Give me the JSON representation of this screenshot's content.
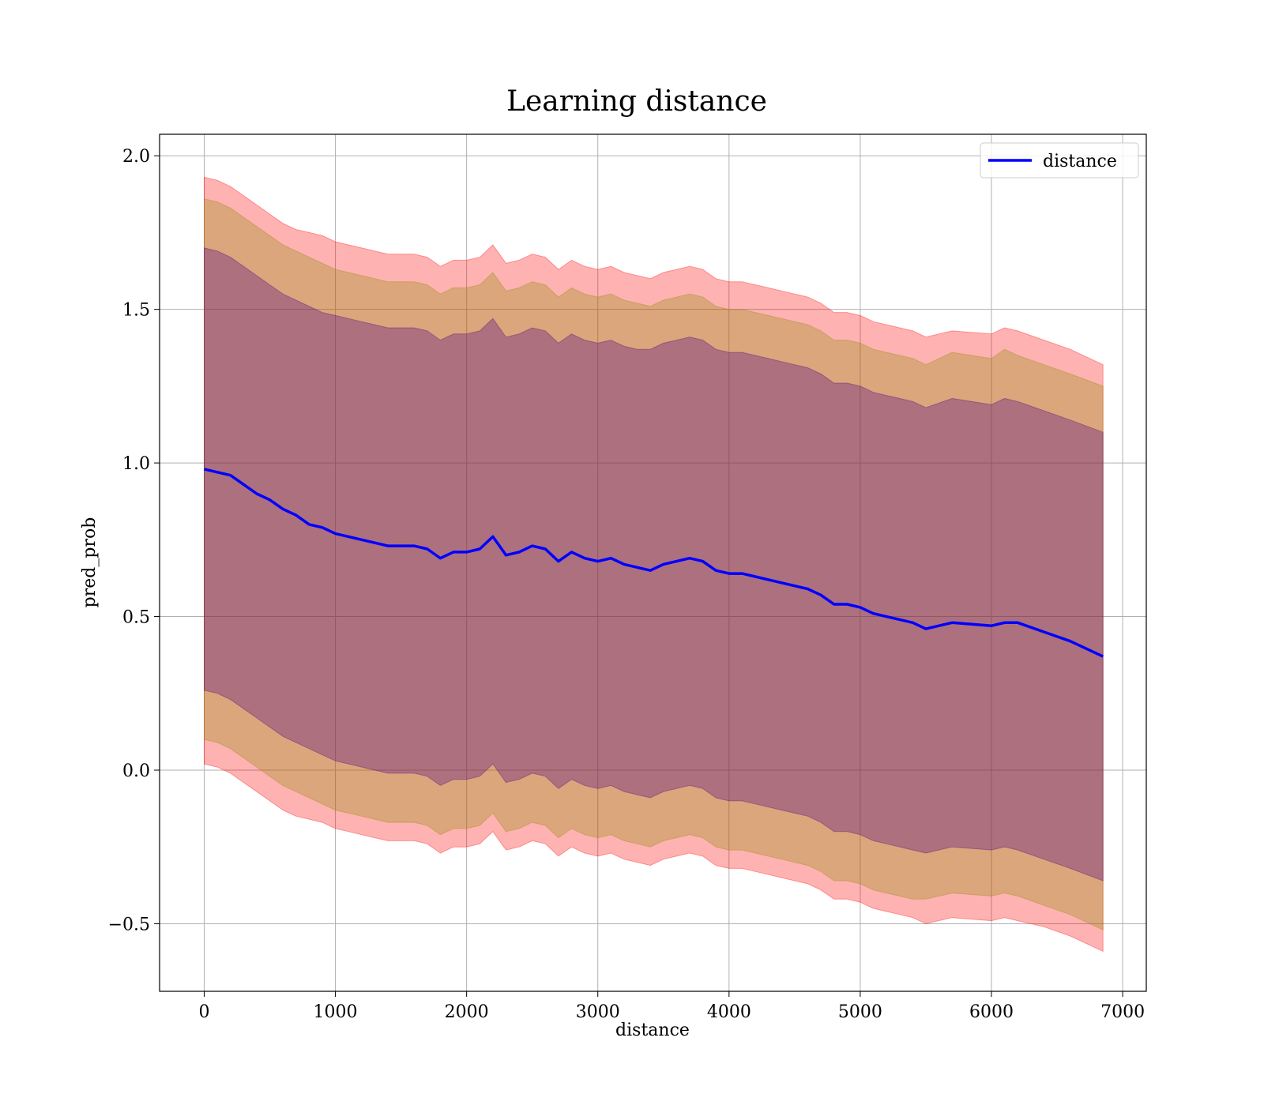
{
  "chart_data": {
    "type": "line",
    "title": "Learning distance",
    "xlabel": "distance",
    "ylabel": "pred_prob",
    "xlim": [
      -340,
      7180
    ],
    "ylim": [
      -0.72,
      2.07
    ],
    "xticks": [
      0,
      1000,
      2000,
      3000,
      4000,
      5000,
      6000,
      7000
    ],
    "yticks": [
      -0.5,
      0.0,
      0.5,
      1.0,
      1.5,
      2.0
    ],
    "xtick_labels": [
      "0",
      "1000",
      "2000",
      "3000",
      "4000",
      "5000",
      "6000",
      "7000"
    ],
    "ytick_labels": [
      "−0.5",
      "0.0",
      "0.5",
      "1.0",
      "1.5",
      "2.0"
    ],
    "grid": true,
    "legend": {
      "position": "top-right",
      "entries": [
        "distance"
      ]
    },
    "colors": {
      "line": "#0000ff",
      "band_outer": "#ff0000",
      "band_middle": "#8b8b00",
      "band_inner": "#4b0082",
      "grid": "#b0b0b0"
    },
    "series": [
      {
        "name": "distance",
        "x": [
          0,
          100,
          200,
          300,
          400,
          500,
          600,
          700,
          800,
          900,
          1000,
          1100,
          1200,
          1300,
          1400,
          1500,
          1600,
          1700,
          1800,
          1900,
          2000,
          2100,
          2200,
          2300,
          2400,
          2500,
          2600,
          2700,
          2800,
          2900,
          3000,
          3100,
          3200,
          3300,
          3400,
          3500,
          3600,
          3700,
          3800,
          3900,
          4000,
          4100,
          4200,
          4300,
          4400,
          4500,
          4600,
          4700,
          4800,
          4900,
          5000,
          5100,
          5200,
          5300,
          5400,
          5500,
          5700,
          6000,
          6100,
          6200,
          6400,
          6600,
          6850
        ],
        "values": [
          0.98,
          0.97,
          0.96,
          0.93,
          0.9,
          0.88,
          0.85,
          0.83,
          0.8,
          0.79,
          0.77,
          0.76,
          0.75,
          0.74,
          0.73,
          0.73,
          0.73,
          0.72,
          0.69,
          0.71,
          0.71,
          0.72,
          0.76,
          0.7,
          0.71,
          0.73,
          0.72,
          0.68,
          0.71,
          0.69,
          0.68,
          0.69,
          0.67,
          0.66,
          0.65,
          0.67,
          0.68,
          0.69,
          0.68,
          0.65,
          0.64,
          0.64,
          0.63,
          0.62,
          0.61,
          0.6,
          0.59,
          0.57,
          0.54,
          0.54,
          0.53,
          0.51,
          0.5,
          0.49,
          0.48,
          0.46,
          0.48,
          0.47,
          0.48,
          0.48,
          0.45,
          0.42,
          0.37
        ]
      }
    ],
    "bands": [
      {
        "role": "outer",
        "upper": [
          1.93,
          1.92,
          1.9,
          1.87,
          1.84,
          1.81,
          1.78,
          1.76,
          1.75,
          1.74,
          1.72,
          1.71,
          1.7,
          1.69,
          1.68,
          1.68,
          1.68,
          1.67,
          1.64,
          1.66,
          1.66,
          1.67,
          1.71,
          1.65,
          1.66,
          1.68,
          1.67,
          1.63,
          1.66,
          1.64,
          1.63,
          1.64,
          1.62,
          1.61,
          1.6,
          1.62,
          1.63,
          1.64,
          1.63,
          1.6,
          1.59,
          1.59,
          1.58,
          1.57,
          1.56,
          1.55,
          1.54,
          1.52,
          1.49,
          1.49,
          1.48,
          1.46,
          1.45,
          1.44,
          1.43,
          1.41,
          1.43,
          1.42,
          1.44,
          1.43,
          1.4,
          1.37,
          1.32
        ],
        "lower": [
          0.02,
          0.01,
          -0.01,
          -0.04,
          -0.07,
          -0.1,
          -0.13,
          -0.15,
          -0.16,
          -0.17,
          -0.19,
          -0.2,
          -0.21,
          -0.22,
          -0.23,
          -0.23,
          -0.23,
          -0.24,
          -0.27,
          -0.25,
          -0.25,
          -0.24,
          -0.2,
          -0.26,
          -0.25,
          -0.23,
          -0.24,
          -0.28,
          -0.25,
          -0.27,
          -0.28,
          -0.27,
          -0.29,
          -0.3,
          -0.31,
          -0.29,
          -0.28,
          -0.27,
          -0.28,
          -0.31,
          -0.32,
          -0.32,
          -0.33,
          -0.34,
          -0.35,
          -0.36,
          -0.37,
          -0.39,
          -0.42,
          -0.42,
          -0.43,
          -0.45,
          -0.46,
          -0.47,
          -0.48,
          -0.5,
          -0.48,
          -0.49,
          -0.48,
          -0.49,
          -0.51,
          -0.54,
          -0.59
        ]
      },
      {
        "role": "middle",
        "upper": [
          1.86,
          1.85,
          1.83,
          1.8,
          1.77,
          1.74,
          1.71,
          1.69,
          1.67,
          1.65,
          1.63,
          1.62,
          1.61,
          1.6,
          1.59,
          1.59,
          1.59,
          1.58,
          1.55,
          1.57,
          1.57,
          1.58,
          1.62,
          1.56,
          1.57,
          1.59,
          1.58,
          1.54,
          1.57,
          1.55,
          1.54,
          1.55,
          1.53,
          1.52,
          1.51,
          1.53,
          1.54,
          1.55,
          1.54,
          1.51,
          1.5,
          1.5,
          1.49,
          1.48,
          1.47,
          1.46,
          1.45,
          1.43,
          1.4,
          1.4,
          1.39,
          1.37,
          1.36,
          1.35,
          1.34,
          1.32,
          1.36,
          1.34,
          1.37,
          1.35,
          1.32,
          1.29,
          1.25
        ],
        "lower": [
          0.1,
          0.09,
          0.07,
          0.04,
          0.01,
          -0.02,
          -0.05,
          -0.07,
          -0.09,
          -0.11,
          -0.13,
          -0.14,
          -0.15,
          -0.16,
          -0.17,
          -0.17,
          -0.17,
          -0.18,
          -0.21,
          -0.19,
          -0.19,
          -0.18,
          -0.14,
          -0.2,
          -0.19,
          -0.17,
          -0.18,
          -0.22,
          -0.19,
          -0.21,
          -0.22,
          -0.21,
          -0.23,
          -0.24,
          -0.25,
          -0.23,
          -0.22,
          -0.21,
          -0.22,
          -0.25,
          -0.26,
          -0.26,
          -0.27,
          -0.28,
          -0.29,
          -0.3,
          -0.31,
          -0.33,
          -0.36,
          -0.36,
          -0.37,
          -0.39,
          -0.4,
          -0.41,
          -0.42,
          -0.42,
          -0.4,
          -0.41,
          -0.4,
          -0.41,
          -0.44,
          -0.47,
          -0.52
        ]
      },
      {
        "role": "inner",
        "upper": [
          1.7,
          1.69,
          1.67,
          1.64,
          1.61,
          1.58,
          1.55,
          1.53,
          1.51,
          1.49,
          1.48,
          1.47,
          1.46,
          1.45,
          1.44,
          1.44,
          1.44,
          1.43,
          1.4,
          1.42,
          1.42,
          1.43,
          1.47,
          1.41,
          1.42,
          1.44,
          1.43,
          1.39,
          1.42,
          1.4,
          1.39,
          1.4,
          1.38,
          1.37,
          1.37,
          1.39,
          1.4,
          1.41,
          1.4,
          1.37,
          1.36,
          1.36,
          1.35,
          1.34,
          1.33,
          1.32,
          1.31,
          1.29,
          1.26,
          1.26,
          1.25,
          1.23,
          1.22,
          1.21,
          1.2,
          1.18,
          1.21,
          1.19,
          1.21,
          1.2,
          1.17,
          1.14,
          1.1
        ],
        "lower": [
          0.26,
          0.25,
          0.23,
          0.2,
          0.17,
          0.14,
          0.11,
          0.09,
          0.07,
          0.05,
          0.03,
          0.02,
          0.01,
          0.0,
          -0.01,
          -0.01,
          -0.01,
          -0.02,
          -0.05,
          -0.03,
          -0.03,
          -0.02,
          0.02,
          -0.04,
          -0.03,
          -0.01,
          -0.02,
          -0.06,
          -0.03,
          -0.05,
          -0.06,
          -0.05,
          -0.07,
          -0.08,
          -0.09,
          -0.07,
          -0.06,
          -0.05,
          -0.06,
          -0.09,
          -0.1,
          -0.1,
          -0.11,
          -0.12,
          -0.13,
          -0.14,
          -0.15,
          -0.17,
          -0.2,
          -0.2,
          -0.21,
          -0.23,
          -0.24,
          -0.25,
          -0.26,
          -0.27,
          -0.25,
          -0.26,
          -0.25,
          -0.26,
          -0.29,
          -0.32,
          -0.36
        ]
      }
    ]
  }
}
